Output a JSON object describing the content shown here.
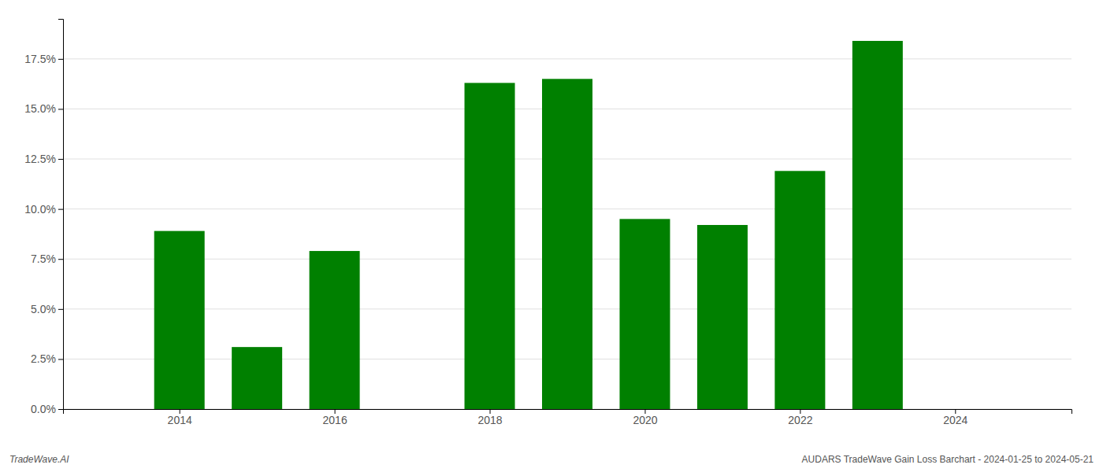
{
  "chart_data": {
    "type": "bar",
    "x": [
      2014,
      2015,
      2016,
      2017,
      2018,
      2019,
      2020,
      2021,
      2022,
      2023
    ],
    "values": [
      0.089,
      0.031,
      0.079,
      0.0,
      0.163,
      0.165,
      0.095,
      0.092,
      0.119,
      0.184
    ],
    "color": "#008000",
    "xlim": [
      2012.5,
      2025.5
    ],
    "xticks": [
      2014,
      2016,
      2018,
      2020,
      2022,
      2024
    ],
    "ylim": [
      0,
      0.195
    ],
    "yticks": [
      {
        "value": 0.0,
        "label": "0.0%"
      },
      {
        "value": 0.025,
        "label": "2.5%"
      },
      {
        "value": 0.05,
        "label": "5.0%"
      },
      {
        "value": 0.075,
        "label": "7.5%"
      },
      {
        "value": 0.1,
        "label": "10.0%"
      },
      {
        "value": 0.125,
        "label": "12.5%"
      },
      {
        "value": 0.15,
        "label": "15.0%"
      },
      {
        "value": 0.175,
        "label": "17.5%"
      }
    ],
    "grid": true,
    "annotations": [
      "TradeWave.AI",
      "AUDARS TradeWave Gain Loss Barchart - 2024-01-25 to 2024-05-21"
    ]
  }
}
